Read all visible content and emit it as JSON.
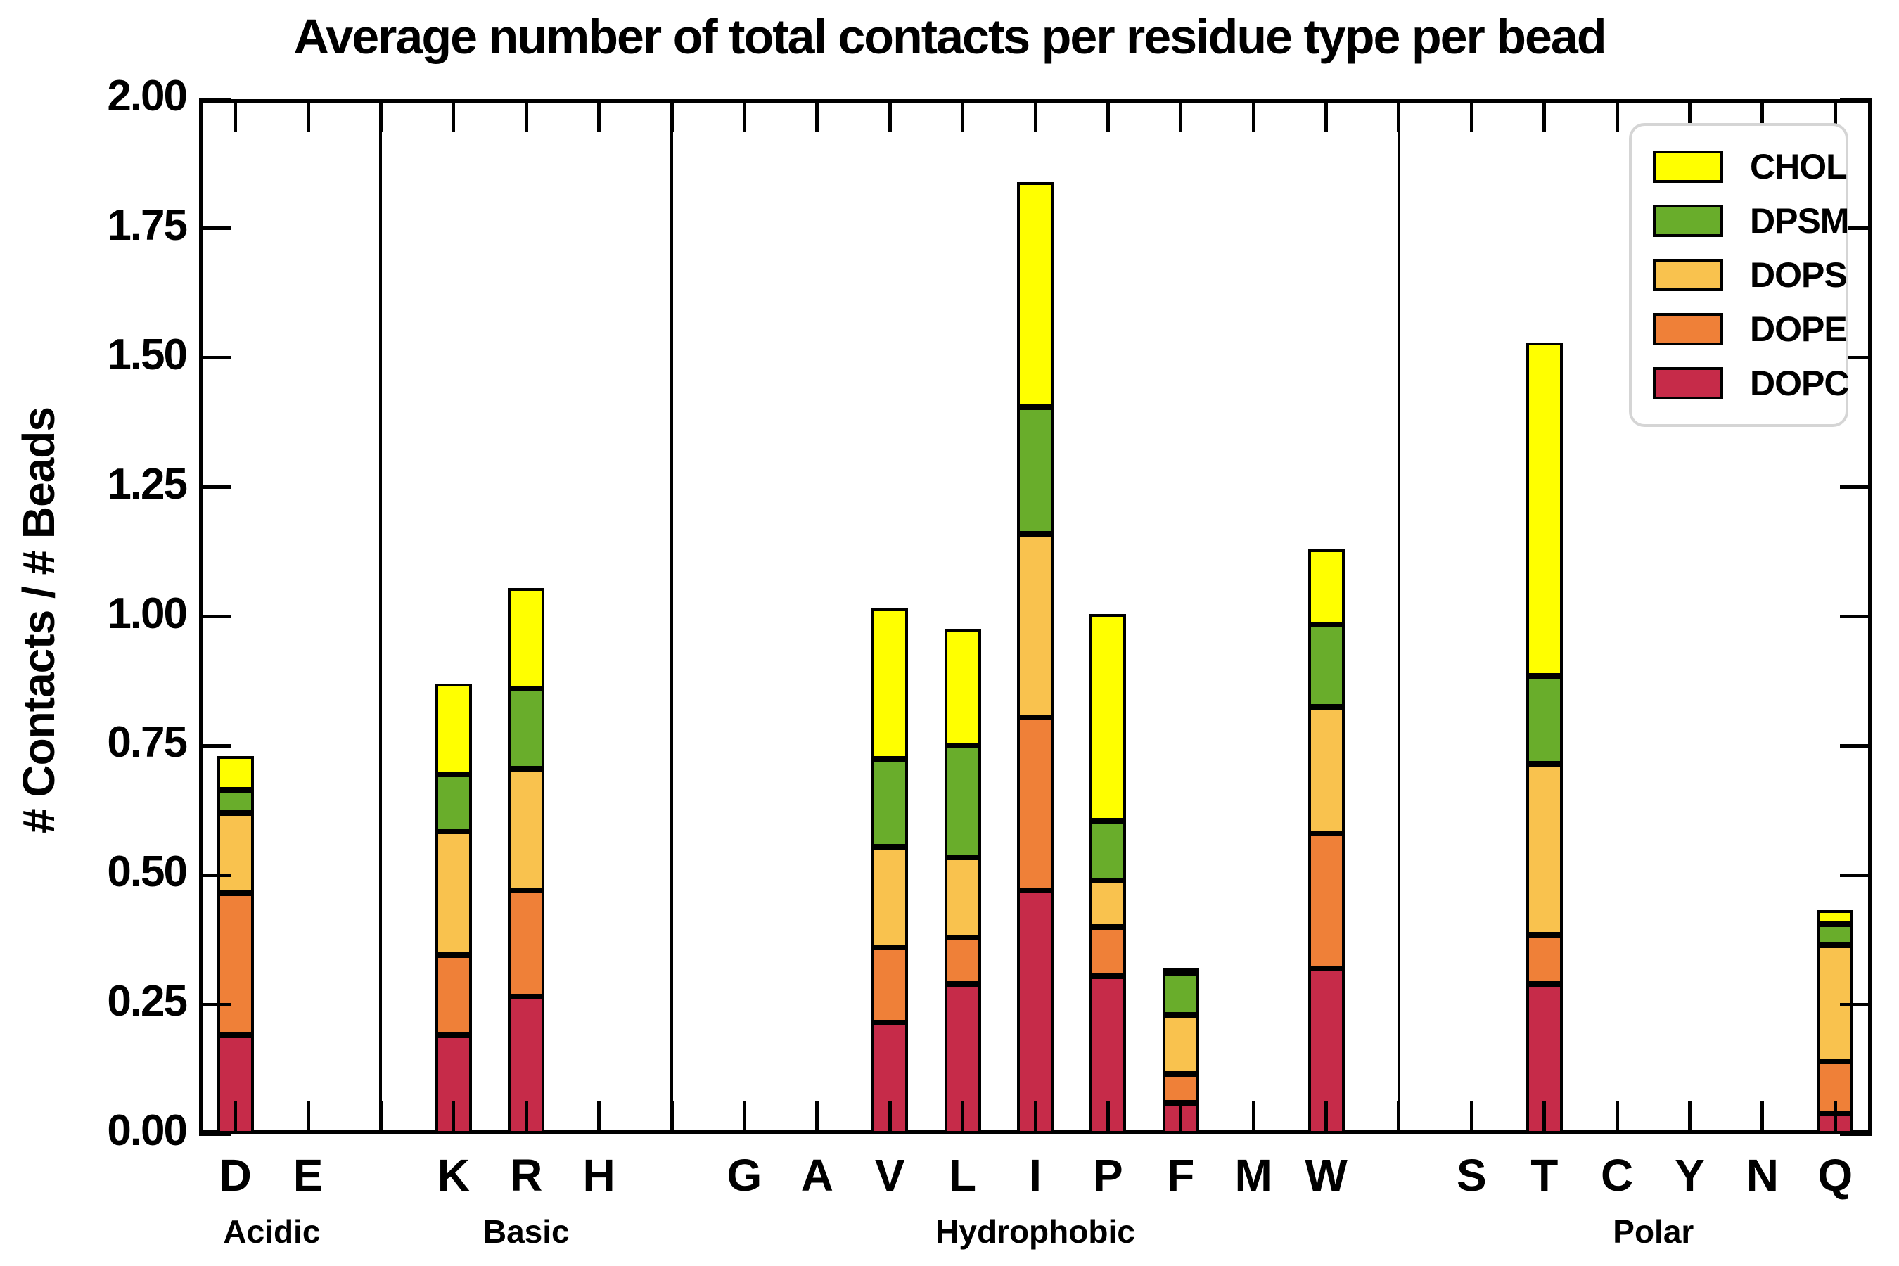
{
  "title": "Average number of total contacts per residue type per bead",
  "ylabel": "# Contacts / # Beads",
  "chart_data": {
    "type": "bar",
    "stacked": true,
    "grid": false,
    "legend_position": "top-right",
    "ylim": [
      0,
      2
    ],
    "ytick_labels": [
      "0.00",
      "0.25",
      "0.50",
      "0.75",
      "1.00",
      "1.25",
      "1.50",
      "1.75",
      "2.00"
    ],
    "categories": [
      "D",
      "E",
      "K",
      "R",
      "H",
      "G",
      "A",
      "V",
      "L",
      "I",
      "P",
      "F",
      "M",
      "W",
      "S",
      "T",
      "C",
      "Y",
      "N",
      "Q"
    ],
    "groups": [
      {
        "label": "Acidic",
        "count": 2
      },
      {
        "label": "Basic",
        "count": 3
      },
      {
        "label": "Hydrophobic",
        "count": 9
      },
      {
        "label": "Polar",
        "count": 6
      }
    ],
    "series": [
      {
        "name": "DOPC",
        "color": "#C62B49",
        "values": [
          0.19,
          0,
          0.19,
          0.265,
          0,
          0,
          0,
          0.215,
          0.29,
          0.47,
          0.305,
          0.06,
          0,
          0.32,
          0,
          0.29,
          0,
          0,
          0,
          0.04
        ]
      },
      {
        "name": "DOPE",
        "color": "#EF8038",
        "values": [
          0.275,
          0,
          0.155,
          0.205,
          0,
          0,
          0,
          0.145,
          0.09,
          0.335,
          0.095,
          0.055,
          0,
          0.26,
          0,
          0.095,
          0,
          0,
          0,
          0.1
        ]
      },
      {
        "name": "DOPS",
        "color": "#F9C24E",
        "values": [
          0.155,
          0,
          0.24,
          0.235,
          0,
          0,
          0,
          0.195,
          0.155,
          0.355,
          0.09,
          0.115,
          0,
          0.245,
          0,
          0.33,
          0,
          0,
          0,
          0.225
        ]
      },
      {
        "name": "DPSM",
        "color": "#69AD2B",
        "values": [
          0.045,
          0,
          0.11,
          0.155,
          0,
          0,
          0,
          0.17,
          0.215,
          0.245,
          0.115,
          0.08,
          0,
          0.16,
          0,
          0.17,
          0,
          0,
          0,
          0.04
        ]
      },
      {
        "name": "CHOL",
        "color": "#FFFF00",
        "values": [
          0.065,
          0,
          0.175,
          0.195,
          0,
          0,
          0,
          0.29,
          0.225,
          0.435,
          0.4,
          0.01,
          0,
          0.145,
          0,
          0.645,
          0,
          0,
          0,
          0.028
        ]
      }
    ],
    "legend_order": [
      "CHOL",
      "DPSM",
      "DOPS",
      "DOPE",
      "DOPC"
    ]
  }
}
